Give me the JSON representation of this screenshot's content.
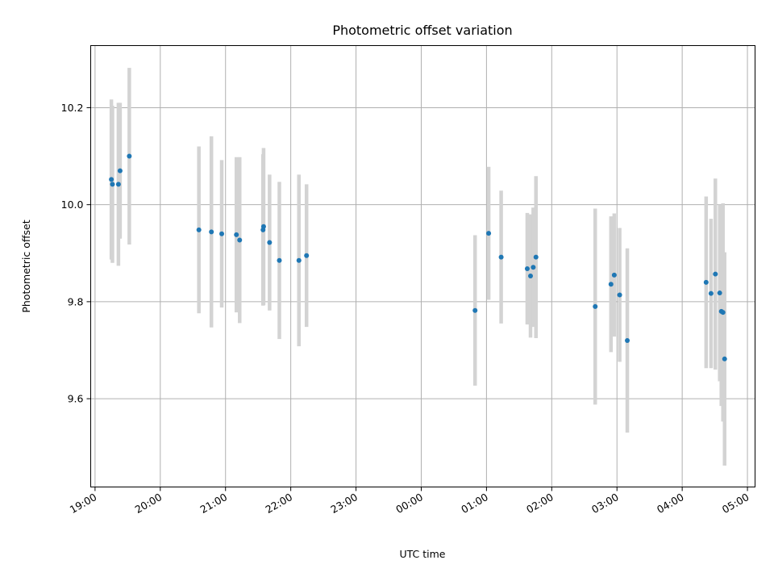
{
  "chart_data": {
    "type": "scatter",
    "title": "Photometric offset variation",
    "xlabel": "UTC time",
    "ylabel": "Photometric offset",
    "grid": true,
    "xlim": [
      "2000-01-01T18:56:00",
      "2000-01-02T05:07:00"
    ],
    "ylim": [
      9.418,
      10.328
    ],
    "xticks": [
      "2000-01-01T19:00:00",
      "2000-01-01T20:00:00",
      "2000-01-01T21:00:00",
      "2000-01-01T22:00:00",
      "2000-01-01T23:00:00",
      "2000-01-02T00:00:00",
      "2000-01-02T01:00:00",
      "2000-01-02T02:00:00",
      "2000-01-02T03:00:00",
      "2000-01-02T04:00:00",
      "2000-01-02T05:00:00"
    ],
    "xtick_labels": [
      "19:00",
      "20:00",
      "21:00",
      "22:00",
      "23:00",
      "00:00",
      "01:00",
      "02:00",
      "03:00",
      "04:00",
      "05:00"
    ],
    "yticks": [
      9.6,
      9.8,
      10.0,
      10.2
    ],
    "ytick_labels": [
      "9.6",
      "9.8",
      "10.0",
      "10.2"
    ],
    "colors": {
      "points": "#1f77b4",
      "error_bars": "#d3d3d3"
    },
    "points": [
      {
        "x": "2000-01-01T19:15:00",
        "y": 10.052,
        "err": 0.165
      },
      {
        "x": "2000-01-01T19:16:00",
        "y": 10.042,
        "err": 0.162
      },
      {
        "x": "2000-01-01T19:21:30",
        "y": 10.042,
        "err": 0.168
      },
      {
        "x": "2000-01-01T19:23:00",
        "y": 10.07,
        "err": 0.14
      },
      {
        "x": "2000-01-01T19:31:30",
        "y": 10.1,
        "err": 0.182
      },
      {
        "x": "2000-01-01T20:35:30",
        "y": 9.948,
        "err": 0.172
      },
      {
        "x": "2000-01-01T20:47:00",
        "y": 9.944,
        "err": 0.197
      },
      {
        "x": "2000-01-01T20:56:30",
        "y": 9.94,
        "err": 0.152
      },
      {
        "x": "2000-01-01T21:10:00",
        "y": 9.938,
        "err": 0.16
      },
      {
        "x": "2000-01-01T21:13:00",
        "y": 9.927,
        "err": 0.171
      },
      {
        "x": "2000-01-01T21:34:30",
        "y": 9.948,
        "err": 0.156
      },
      {
        "x": "2000-01-01T21:35:00",
        "y": 9.955,
        "err": 0.162
      },
      {
        "x": "2000-01-01T21:40:30",
        "y": 9.922,
        "err": 0.14
      },
      {
        "x": "2000-01-01T21:49:30",
        "y": 9.885,
        "err": 0.162
      },
      {
        "x": "2000-01-01T22:07:30",
        "y": 9.885,
        "err": 0.177
      },
      {
        "x": "2000-01-01T22:14:30",
        "y": 9.895,
        "err": 0.147
      },
      {
        "x": "2000-01-02T00:49:30",
        "y": 9.782,
        "err": 0.155
      },
      {
        "x": "2000-01-02T01:02:00",
        "y": 9.941,
        "err": 0.137
      },
      {
        "x": "2000-01-02T01:13:30",
        "y": 9.892,
        "err": 0.137
      },
      {
        "x": "2000-01-02T01:37:30",
        "y": 9.868,
        "err": 0.115
      },
      {
        "x": "2000-01-02T01:40:30",
        "y": 9.853,
        "err": 0.127
      },
      {
        "x": "2000-01-02T01:43:00",
        "y": 9.871,
        "err": 0.123
      },
      {
        "x": "2000-01-02T01:45:30",
        "y": 9.892,
        "err": 0.167
      },
      {
        "x": "2000-01-02T02:40:00",
        "y": 9.79,
        "err": 0.202
      },
      {
        "x": "2000-01-02T02:54:30",
        "y": 9.836,
        "err": 0.14
      },
      {
        "x": "2000-01-02T02:57:30",
        "y": 9.855,
        "err": 0.127
      },
      {
        "x": "2000-01-02T03:02:30",
        "y": 9.814,
        "err": 0.138
      },
      {
        "x": "2000-01-02T03:09:30",
        "y": 9.72,
        "err": 0.19
      },
      {
        "x": "2000-01-02T04:22:00",
        "y": 9.84,
        "err": 0.177
      },
      {
        "x": "2000-01-02T04:26:30",
        "y": 9.817,
        "err": 0.154
      },
      {
        "x": "2000-01-02T04:30:30",
        "y": 9.857,
        "err": 0.197
      },
      {
        "x": "2000-01-02T04:34:30",
        "y": 9.818,
        "err": 0.182
      },
      {
        "x": "2000-01-02T04:36:00",
        "y": 9.78,
        "err": 0.195
      },
      {
        "x": "2000-01-02T04:37:30",
        "y": 9.778,
        "err": 0.225
      },
      {
        "x": "2000-01-02T04:39:00",
        "y": 9.682,
        "err": 0.22
      }
    ]
  }
}
